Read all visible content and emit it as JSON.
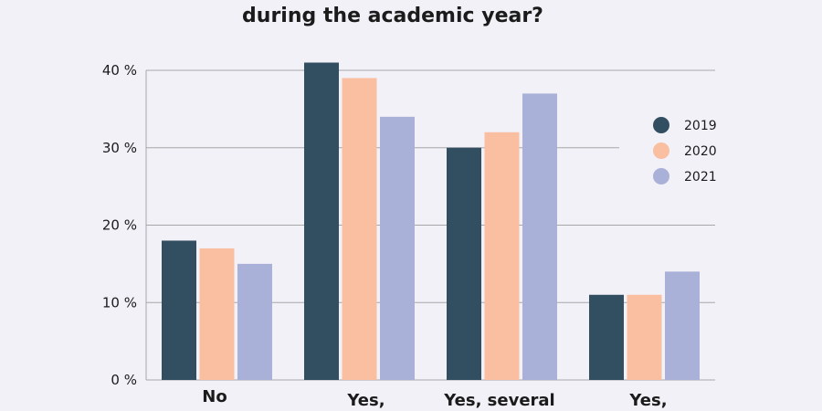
{
  "chart_data": {
    "type": "bar",
    "title": "during the academic year?",
    "xlabel": "",
    "ylabel": "",
    "categories": [
      "No",
      "Yes,",
      "Yes, several",
      "Yes,"
    ],
    "series": [
      {
        "name": "2019",
        "values": [
          18,
          41,
          30,
          11
        ]
      },
      {
        "name": "2020",
        "values": [
          17,
          39,
          32,
          11
        ]
      },
      {
        "name": "2021",
        "values": [
          15,
          34,
          37,
          14
        ]
      }
    ],
    "ylim": [
      0,
      40
    ],
    "yticks": [
      {
        "value": 0,
        "label": "0 %"
      },
      {
        "value": 10,
        "label": "10 %"
      },
      {
        "value": 20,
        "label": "20 %"
      },
      {
        "value": 30,
        "label": "30 %"
      },
      {
        "value": 40,
        "label": "40 %"
      }
    ],
    "grid": true,
    "legend_position": "right",
    "colors": {
      "2019": "#324f62",
      "2020": "#f9bfa0",
      "2021": "#aab1d8",
      "background": "#f3f1f8",
      "grid": "#a7a7a7",
      "text": "#1b1b1b"
    }
  }
}
